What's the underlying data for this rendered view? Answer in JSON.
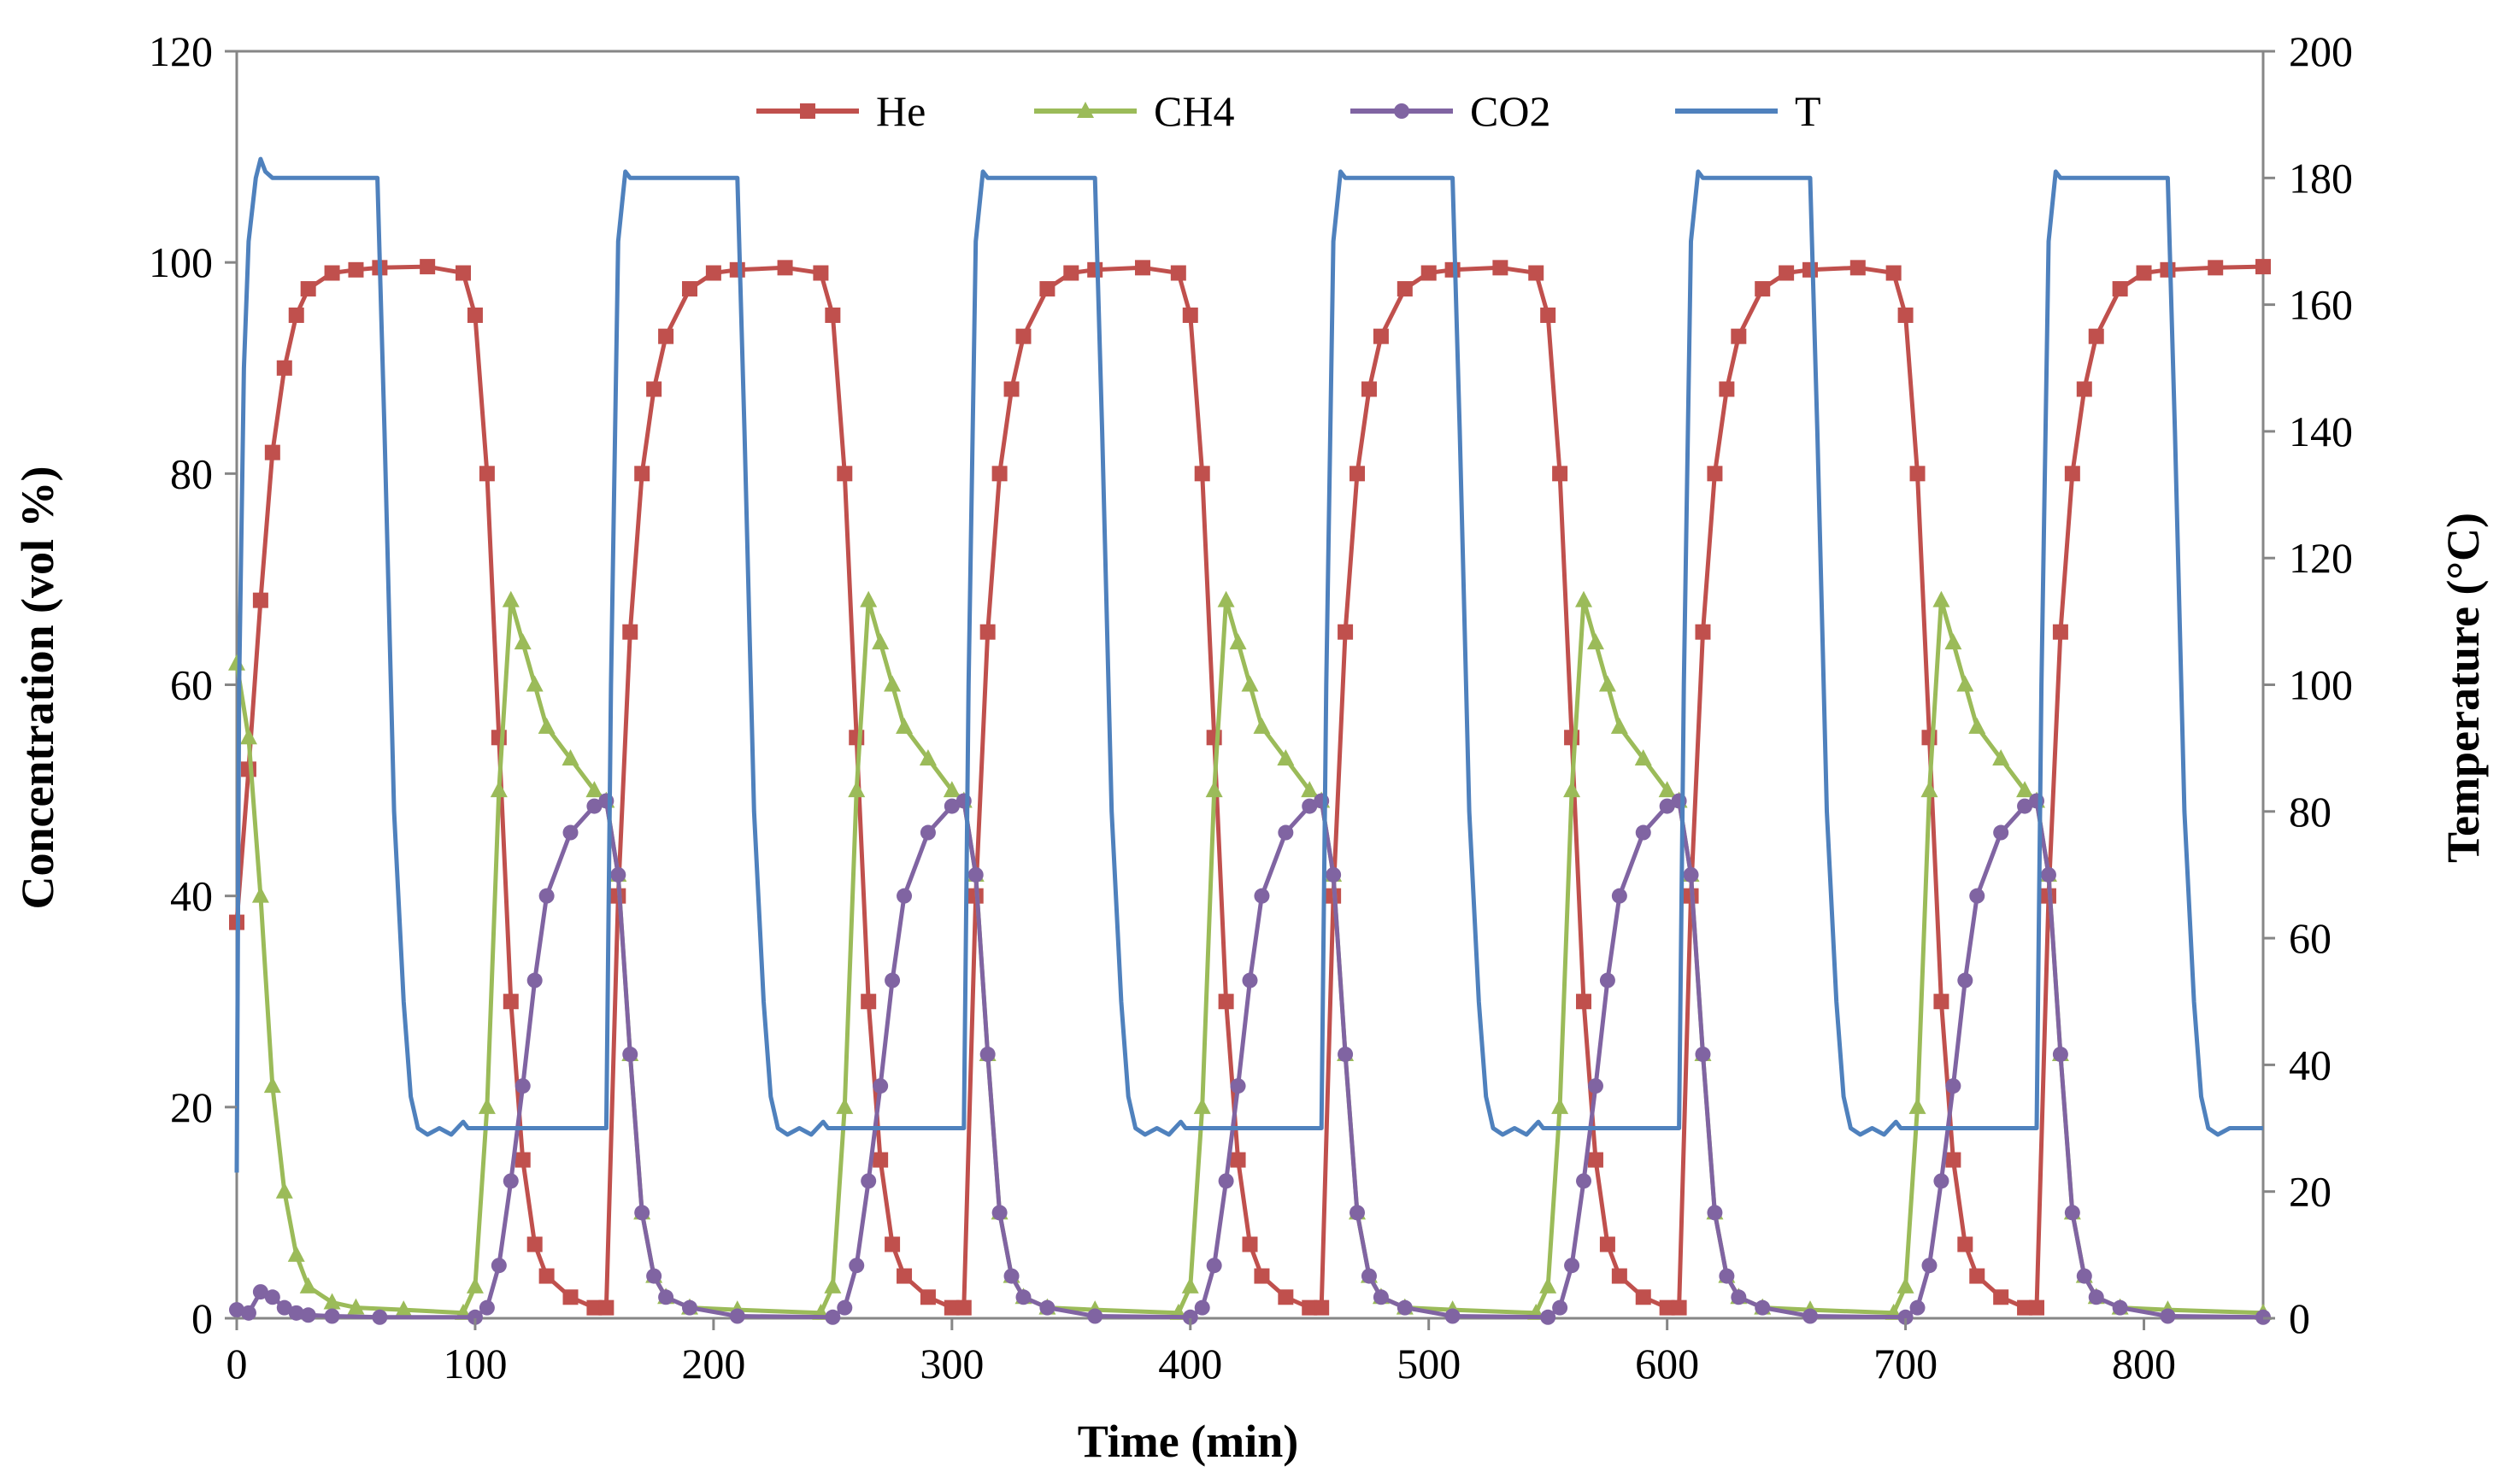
{
  "chart_data": {
    "type": "line",
    "title": "",
    "xlabel": "Time (min)",
    "ylabel": "Concentration (vol %)",
    "y2label": "Temperature (°C)",
    "xlim": [
      0,
      850
    ],
    "ylim": [
      0,
      120
    ],
    "y2lim": [
      0,
      200
    ],
    "xticks": [
      0,
      100,
      200,
      300,
      400,
      500,
      600,
      700,
      800
    ],
    "yticks": [
      0,
      20,
      40,
      60,
      80,
      100,
      120
    ],
    "y2ticks": [
      0,
      20,
      40,
      60,
      80,
      100,
      120,
      140,
      160,
      180,
      200
    ],
    "grid": false,
    "legend_position": "top-center",
    "series": [
      {
        "name": "He",
        "axis": "left",
        "color": "#c0504d",
        "marker": "square",
        "x": [
          0,
          5,
          10,
          15,
          20,
          25,
          30,
          40,
          50,
          60,
          80,
          95,
          100,
          105,
          110,
          115,
          120,
          125,
          130,
          140,
          150,
          155,
          160,
          165,
          170,
          175,
          180,
          190,
          200,
          210,
          230,
          245,
          250,
          255,
          260,
          265,
          270,
          275,
          280,
          290,
          300,
          305,
          310,
          315,
          320,
          325,
          330,
          340,
          350,
          360,
          380,
          395,
          400,
          405,
          410,
          415,
          420,
          425,
          430,
          440,
          450,
          455,
          460,
          465,
          470,
          475,
          480,
          490,
          500,
          510,
          530,
          545,
          550,
          555,
          560,
          565,
          570,
          575,
          580,
          590,
          600,
          605,
          610,
          615,
          620,
          625,
          630,
          640,
          650,
          660,
          680,
          695,
          700,
          705,
          710,
          715,
          720,
          725,
          730,
          740,
          750,
          755,
          760,
          765,
          770,
          775,
          780,
          790,
          800,
          810,
          830,
          850
        ],
        "y": [
          37.5,
          52,
          68,
          82,
          90,
          95,
          97.5,
          99,
          99.3,
          99.5,
          99.6,
          99,
          95,
          80,
          55,
          30,
          15,
          7,
          4,
          2,
          1,
          1,
          40,
          65,
          80,
          88,
          93,
          97.5,
          99,
          99.3,
          99.5,
          99,
          95,
          80,
          55,
          30,
          15,
          7,
          4,
          2,
          1,
          1,
          40,
          65,
          80,
          88,
          93,
          97.5,
          99,
          99.3,
          99.5,
          99,
          95,
          80,
          55,
          30,
          15,
          7,
          4,
          2,
          1,
          1,
          40,
          65,
          80,
          88,
          93,
          97.5,
          99,
          99.3,
          99.5,
          99,
          95,
          80,
          55,
          30,
          15,
          7,
          4,
          2,
          1,
          1,
          40,
          65,
          80,
          88,
          93,
          97.5,
          99,
          99.3,
          99.5,
          99,
          95,
          80,
          55,
          30,
          15,
          7,
          4,
          2,
          1,
          1,
          40,
          65,
          80,
          88,
          93,
          97.5,
          99,
          99.3,
          99.5,
          99.6
        ]
      },
      {
        "name": "CH4",
        "axis": "left",
        "color": "#9bbb59",
        "marker": "triangle",
        "x": [
          0,
          5,
          10,
          15,
          20,
          25,
          30,
          40,
          50,
          70,
          95,
          100,
          105,
          110,
          115,
          120,
          125,
          130,
          140,
          150,
          155,
          160,
          165,
          170,
          175,
          180,
          190,
          210,
          245,
          250,
          255,
          260,
          265,
          270,
          275,
          280,
          290,
          300,
          305,
          310,
          315,
          320,
          325,
          330,
          340,
          360,
          395,
          400,
          405,
          410,
          415,
          420,
          425,
          430,
          440,
          450,
          455,
          460,
          465,
          470,
          475,
          480,
          490,
          510,
          545,
          550,
          555,
          560,
          565,
          570,
          575,
          580,
          590,
          600,
          605,
          610,
          615,
          620,
          625,
          630,
          640,
          660,
          695,
          700,
          705,
          710,
          715,
          720,
          725,
          730,
          740,
          750,
          755,
          760,
          765,
          770,
          775,
          780,
          790,
          810,
          850
        ],
        "y": [
          62,
          55,
          40,
          22,
          12,
          6,
          3,
          1.5,
          1,
          0.8,
          0.5,
          3,
          20,
          50,
          68,
          64,
          60,
          56,
          53,
          50,
          49,
          42,
          25,
          10,
          4,
          2,
          1,
          0.8,
          0.5,
          3,
          20,
          50,
          68,
          64,
          60,
          56,
          53,
          50,
          49,
          42,
          25,
          10,
          4,
          2,
          1,
          0.8,
          0.5,
          3,
          20,
          50,
          68,
          64,
          60,
          56,
          53,
          50,
          49,
          42,
          25,
          10,
          4,
          2,
          1,
          0.8,
          0.5,
          3,
          20,
          50,
          68,
          64,
          60,
          56,
          53,
          50,
          49,
          42,
          25,
          10,
          4,
          2,
          1,
          0.8,
          0.5,
          3,
          20,
          50,
          68,
          64,
          60,
          56,
          53,
          50,
          49,
          42,
          25,
          10,
          4,
          2,
          1,
          0.8,
          0.5
        ]
      },
      {
        "name": "CO2",
        "axis": "left",
        "color": "#8064a2",
        "marker": "circle",
        "x": [
          0,
          5,
          10,
          15,
          20,
          25,
          30,
          40,
          60,
          100,
          105,
          110,
          115,
          120,
          125,
          130,
          140,
          150,
          155,
          160,
          165,
          170,
          175,
          180,
          190,
          210,
          250,
          255,
          260,
          265,
          270,
          275,
          280,
          290,
          300,
          305,
          310,
          315,
          320,
          325,
          330,
          340,
          360,
          400,
          405,
          410,
          415,
          420,
          425,
          430,
          440,
          450,
          455,
          460,
          465,
          470,
          475,
          480,
          490,
          510,
          550,
          555,
          560,
          565,
          570,
          575,
          580,
          590,
          600,
          605,
          610,
          615,
          620,
          625,
          630,
          640,
          660,
          700,
          705,
          710,
          715,
          720,
          725,
          730,
          740,
          750,
          755,
          760,
          765,
          770,
          775,
          780,
          790,
          810,
          850
        ],
        "y": [
          0.8,
          0.5,
          2.5,
          2,
          1,
          0.5,
          0.3,
          0.2,
          0.1,
          0.1,
          1,
          5,
          13,
          22,
          32,
          40,
          46,
          48.5,
          49,
          42,
          25,
          10,
          4,
          2,
          1,
          0.2,
          0.1,
          1,
          5,
          13,
          22,
          32,
          40,
          46,
          48.5,
          49,
          42,
          25,
          10,
          4,
          2,
          1,
          0.2,
          0.1,
          1,
          5,
          13,
          22,
          32,
          40,
          46,
          48.5,
          49,
          42,
          25,
          10,
          4,
          2,
          1,
          0.2,
          0.1,
          1,
          5,
          13,
          22,
          32,
          40,
          46,
          48.5,
          49,
          42,
          25,
          10,
          4,
          2,
          1,
          0.2,
          0.1,
          1,
          5,
          13,
          22,
          32,
          40,
          46,
          48.5,
          49,
          42,
          25,
          10,
          4,
          2,
          1,
          0.2,
          0.1
        ]
      },
      {
        "name": "T",
        "axis": "right",
        "color": "#4f81bd",
        "marker": "none",
        "x": [
          0,
          1,
          3,
          5,
          8,
          10,
          12,
          15,
          20,
          59,
          62,
          66,
          70,
          73,
          76,
          80,
          85,
          90,
          95,
          97,
          100,
          155,
          157,
          160,
          163,
          165,
          210,
          213,
          217,
          221,
          224,
          227,
          231,
          236,
          241,
          246,
          248,
          251,
          305,
          307,
          310,
          313,
          315,
          360,
          363,
          367,
          371,
          374,
          377,
          381,
          386,
          391,
          396,
          398,
          401,
          455,
          457,
          460,
          463,
          465,
          510,
          513,
          517,
          521,
          524,
          527,
          531,
          536,
          541,
          546,
          548,
          551,
          605,
          607,
          610,
          613,
          615,
          660,
          663,
          667,
          671,
          674,
          677,
          681,
          686,
          691,
          696,
          698,
          701,
          755,
          757,
          760,
          763,
          765,
          810,
          813,
          817,
          821,
          824,
          827,
          831,
          836,
          850
        ],
        "y": [
          23,
          100,
          150,
          170,
          180,
          183,
          181,
          180,
          180,
          180,
          140,
          80,
          50,
          35,
          30,
          29,
          30,
          29,
          31,
          30,
          30,
          30,
          100,
          170,
          181,
          180,
          180,
          140,
          80,
          50,
          35,
          30,
          29,
          30,
          29,
          31,
          30,
          30,
          30,
          100,
          170,
          181,
          180,
          180,
          140,
          80,
          50,
          35,
          30,
          29,
          30,
          29,
          31,
          30,
          30,
          30,
          100,
          170,
          181,
          180,
          180,
          140,
          80,
          50,
          35,
          30,
          29,
          30,
          29,
          31,
          30,
          30,
          30,
          100,
          170,
          181,
          180,
          180,
          140,
          80,
          50,
          35,
          30,
          29,
          30,
          29,
          31,
          30,
          30,
          30,
          100,
          170,
          181,
          180,
          180,
          140,
          80,
          50,
          35,
          30,
          29,
          30,
          30
        ]
      }
    ]
  }
}
